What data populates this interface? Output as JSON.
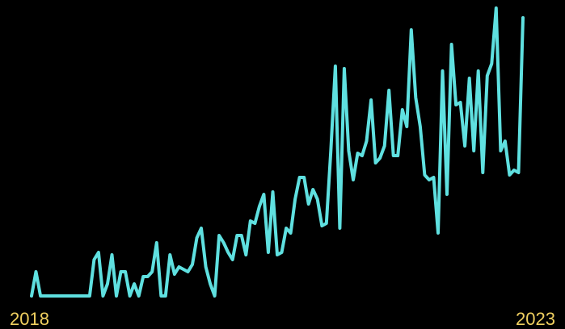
{
  "chart_data": {
    "type": "line",
    "title": "",
    "xlabel": "",
    "ylabel": "",
    "x_tick_labels": [
      "2018",
      "2023"
    ],
    "x_range": [
      "2018-01",
      "2023-03"
    ],
    "y_axis_visible": false,
    "grid": false,
    "legend": "none",
    "colors": {
      "background": "#000000",
      "line": "#5fe0e0",
      "tick_label": "#f0d060"
    },
    "series": [
      {
        "values": [
          0,
          10,
          0,
          0,
          0,
          0,
          0,
          0,
          0,
          0,
          0,
          0,
          0,
          0,
          15,
          18,
          0,
          5,
          17,
          0,
          10,
          10,
          0,
          5,
          0,
          8,
          8,
          10,
          22,
          0,
          0,
          17,
          9,
          12,
          11,
          10,
          13,
          24,
          28,
          12,
          5,
          0,
          25,
          22,
          18,
          15,
          25,
          25,
          17,
          31,
          30,
          37,
          42,
          18,
          43,
          17,
          18,
          28,
          26,
          40,
          49,
          49,
          38,
          44,
          40,
          29,
          30,
          60,
          95,
          28,
          94,
          60,
          48,
          59,
          58,
          64,
          81,
          55,
          57,
          62,
          85,
          58,
          58,
          77,
          70,
          110,
          82,
          70,
          50,
          48,
          49,
          26,
          93,
          42,
          104,
          79,
          80,
          62,
          90,
          60,
          93,
          51,
          91,
          96,
          119,
          60,
          64,
          50,
          52,
          51,
          115
        ]
      }
    ]
  }
}
